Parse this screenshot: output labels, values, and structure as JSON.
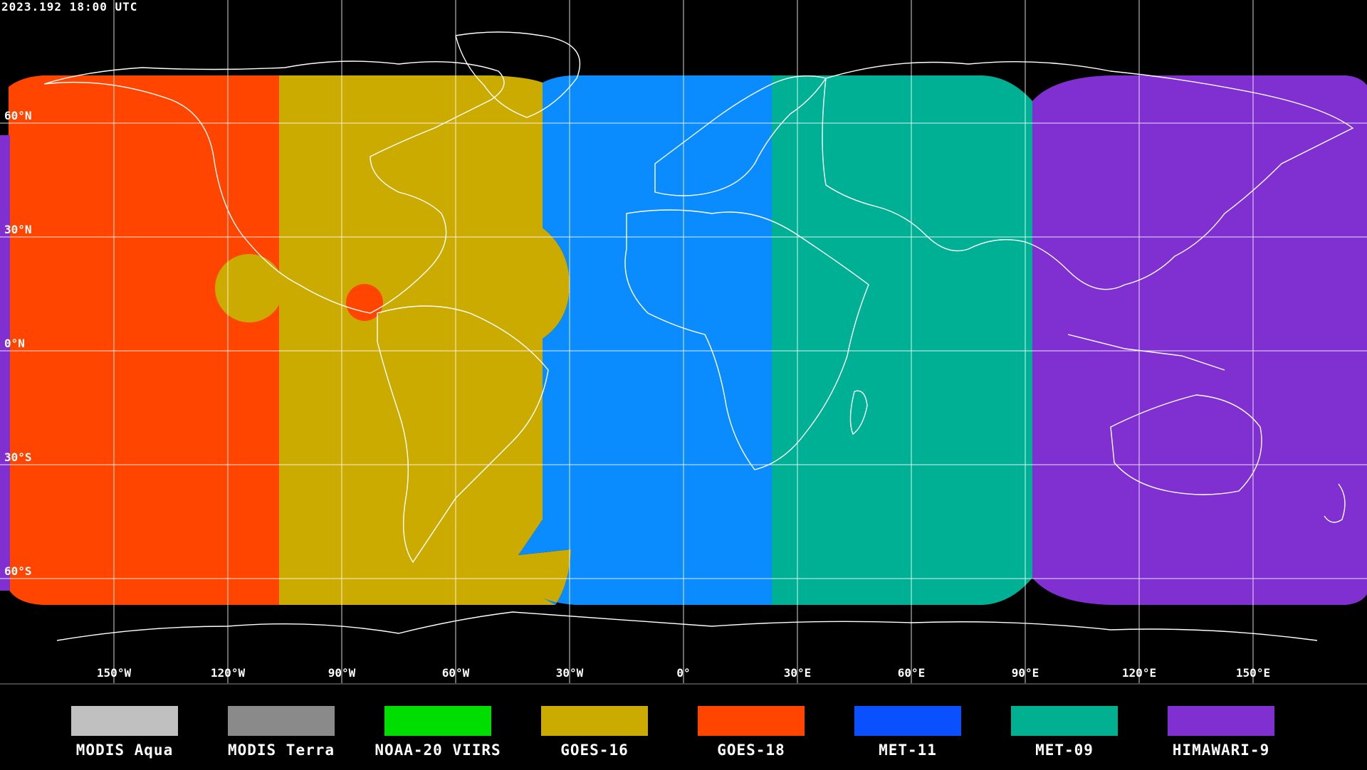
{
  "timestamp": "2023.192 18:00 UTC",
  "lat_labels": [
    "60°N",
    "30°N",
    "0°N",
    "30°S",
    "60°S"
  ],
  "lon_labels": [
    "150°W",
    "120°W",
    "90°W",
    "60°W",
    "30°W",
    "0°",
    "30°E",
    "60°E",
    "90°E",
    "120°E",
    "150°E"
  ],
  "legend": [
    {
      "label": "MODIS Aqua",
      "color": "#c0c0c0"
    },
    {
      "label": "MODIS Terra",
      "color": "#8a8a8a"
    },
    {
      "label": "NOAA-20 VIIRS",
      "color": "#00dd00"
    },
    {
      "label": "GOES-16",
      "color": "#ccab00"
    },
    {
      "label": "GOES-18",
      "color": "#ff4500"
    },
    {
      "label": "MET-11",
      "color": "#0a50ff"
    },
    {
      "label": "MET-09",
      "color": "#00b090"
    },
    {
      "label": "HIMAWARI-9",
      "color": "#8030d0"
    }
  ],
  "map_regions": {
    "goes18": "#ff4500",
    "goes16": "#ccab00",
    "met11": "#0a8cff",
    "met09": "#00b094",
    "himawari9": "#8030d0"
  }
}
